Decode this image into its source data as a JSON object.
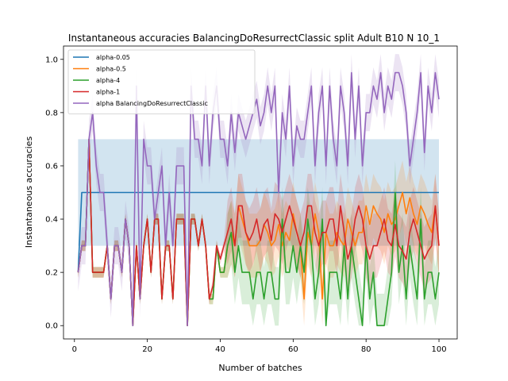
{
  "chart_data": {
    "type": "line",
    "title": "Instantaneous accuracies BalancingDoResurrectClassic split Adult B10 N 10_1",
    "xlabel": "Number of batches",
    "ylabel": "Instantaneous accuracies",
    "xlim": [
      -3,
      105
    ],
    "ylim": [
      -0.05,
      1.05
    ],
    "xticks": [
      0,
      20,
      40,
      60,
      80,
      100
    ],
    "yticks": [
      0.0,
      0.2,
      0.4,
      0.6,
      0.8,
      1.0
    ],
    "xtick_labels": [
      "0",
      "20",
      "40",
      "60",
      "80",
      "100"
    ],
    "ytick_labels": [
      "0.0",
      "0.2",
      "0.4",
      "0.6",
      "0.8",
      "1.0"
    ],
    "legend_position": "top-left",
    "grid": false,
    "x": [
      1,
      2,
      3,
      4,
      5,
      6,
      7,
      8,
      9,
      10,
      11,
      12,
      13,
      14,
      15,
      16,
      17,
      18,
      19,
      20,
      21,
      22,
      23,
      24,
      25,
      26,
      27,
      28,
      29,
      30,
      31,
      32,
      33,
      34,
      35,
      36,
      37,
      38,
      39,
      40,
      41,
      42,
      43,
      44,
      45,
      46,
      47,
      48,
      49,
      50,
      51,
      52,
      53,
      54,
      55,
      56,
      57,
      58,
      59,
      60,
      61,
      62,
      63,
      64,
      65,
      66,
      67,
      68,
      69,
      70,
      71,
      72,
      73,
      74,
      75,
      76,
      77,
      78,
      79,
      80,
      81,
      82,
      83,
      84,
      85,
      86,
      87,
      88,
      89,
      90,
      91,
      92,
      93,
      94,
      95,
      96,
      97,
      98,
      99,
      100
    ],
    "series": [
      {
        "name": "alpha-0.05",
        "color": "#1f77b4",
        "values": [
          0.2,
          0.5,
          0.5,
          0.5,
          0.5,
          0.5,
          0.5,
          0.5,
          0.5,
          0.5,
          0.5,
          0.5,
          0.5,
          0.5,
          0.5,
          0.5,
          0.5,
          0.5,
          0.5,
          0.5,
          0.5,
          0.5,
          0.5,
          0.5,
          0.5,
          0.5,
          0.5,
          0.5,
          0.5,
          0.5,
          0.5,
          0.5,
          0.5,
          0.5,
          0.5,
          0.5,
          0.5,
          0.5,
          0.5,
          0.5,
          0.5,
          0.5,
          0.5,
          0.5,
          0.5,
          0.5,
          0.5,
          0.5,
          0.5,
          0.5,
          0.5,
          0.5,
          0.5,
          0.5,
          0.5,
          0.5,
          0.5,
          0.5,
          0.5,
          0.5,
          0.5,
          0.5,
          0.5,
          0.5,
          0.5,
          0.5,
          0.5,
          0.5,
          0.5,
          0.5,
          0.5,
          0.5,
          0.5,
          0.5,
          0.5,
          0.5,
          0.5,
          0.5,
          0.5,
          0.5,
          0.5,
          0.5,
          0.5,
          0.5,
          0.5,
          0.5,
          0.5,
          0.5,
          0.5,
          0.5,
          0.5,
          0.5,
          0.5,
          0.5,
          0.5,
          0.5,
          0.5,
          0.5,
          0.5,
          0.5
        ],
        "band": [
          0.3,
          0.7
        ]
      },
      {
        "name": "alpha-0.5",
        "color": "#ff7f0e",
        "values": [
          0.2,
          0.3,
          0.3,
          0.7,
          0.2,
          0.2,
          0.2,
          0.2,
          0.3,
          0.1,
          0.3,
          0.3,
          0.2,
          0.4,
          0.3,
          0.0,
          0.3,
          0.1,
          0.3,
          0.4,
          0.2,
          0.4,
          0.4,
          0.1,
          0.3,
          0.3,
          0.1,
          0.4,
          0.4,
          0.4,
          0.0,
          0.4,
          0.4,
          0.3,
          0.4,
          0.3,
          0.1,
          0.1,
          0.3,
          0.2,
          0.2,
          0.3,
          0.35,
          0.3,
          0.45,
          0.4,
          0.35,
          0.3,
          0.3,
          0.3,
          0.32,
          0.38,
          0.35,
          0.3,
          0.32,
          0.38,
          0.3,
          0.35,
          0.32,
          0.42,
          0.35,
          0.3,
          0.1,
          0.35,
          0.3,
          0.42,
          0.35,
          0.1,
          0.35,
          0.3,
          0.3,
          0.35,
          0.32,
          0.3,
          0.4,
          0.35,
          0.3,
          0.35,
          0.35,
          0.45,
          0.38,
          0.45,
          0.42,
          0.4,
          0.35,
          0.42,
          0.38,
          0.4,
          0.45,
          0.5,
          0.42,
          0.48,
          0.42,
          0.38,
          0.45,
          0.42,
          0.38,
          0.35,
          0.45,
          0.3
        ]
      },
      {
        "name": "alpha-4",
        "color": "#2ca02c",
        "values": [
          0.2,
          0.3,
          0.3,
          0.7,
          0.2,
          0.2,
          0.2,
          0.2,
          0.3,
          0.1,
          0.3,
          0.3,
          0.2,
          0.4,
          0.3,
          0.0,
          0.3,
          0.1,
          0.3,
          0.4,
          0.2,
          0.4,
          0.4,
          0.1,
          0.3,
          0.3,
          0.1,
          0.4,
          0.4,
          0.4,
          0.0,
          0.4,
          0.4,
          0.3,
          0.4,
          0.3,
          0.1,
          0.1,
          0.3,
          0.2,
          0.2,
          0.3,
          0.35,
          0.2,
          0.3,
          0.2,
          0.2,
          0.2,
          0.1,
          0.2,
          0.2,
          0.1,
          0.2,
          0.2,
          0.1,
          0.1,
          0.4,
          0.2,
          0.2,
          0.3,
          0.2,
          0.3,
          0.2,
          0.4,
          0.3,
          0.1,
          0.2,
          0.4,
          0.0,
          0.2,
          0.2,
          0.2,
          0.1,
          0.3,
          0.1,
          0.3,
          0.2,
          0.1,
          0.0,
          0.3,
          0.1,
          0.2,
          0.0,
          0.0,
          0.0,
          0.1,
          0.2,
          0.5,
          0.2,
          0.3,
          0.1,
          0.3,
          0.2,
          0.1,
          0.4,
          0.1,
          0.2,
          0.2,
          0.1,
          0.2
        ]
      },
      {
        "name": "alpha-1",
        "color": "#d62728",
        "values": [
          0.2,
          0.3,
          0.3,
          0.7,
          0.2,
          0.2,
          0.2,
          0.2,
          0.3,
          0.1,
          0.3,
          0.3,
          0.2,
          0.4,
          0.3,
          0.0,
          0.3,
          0.1,
          0.3,
          0.4,
          0.2,
          0.4,
          0.4,
          0.1,
          0.3,
          0.3,
          0.1,
          0.4,
          0.4,
          0.4,
          0.0,
          0.4,
          0.4,
          0.3,
          0.4,
          0.3,
          0.1,
          0.15,
          0.3,
          0.25,
          0.3,
          0.35,
          0.4,
          0.3,
          0.45,
          0.45,
          0.35,
          0.32,
          0.35,
          0.4,
          0.32,
          0.38,
          0.4,
          0.32,
          0.42,
          0.4,
          0.35,
          0.4,
          0.45,
          0.4,
          0.35,
          0.3,
          0.35,
          0.45,
          0.45,
          0.35,
          0.3,
          0.35,
          0.35,
          0.4,
          0.4,
          0.3,
          0.45,
          0.35,
          0.25,
          0.3,
          0.4,
          0.45,
          0.4,
          0.3,
          0.25,
          0.3,
          0.3,
          0.35,
          0.4,
          0.32,
          0.3,
          0.38,
          0.3,
          0.28,
          0.25,
          0.35,
          0.4,
          0.35,
          0.3,
          0.25,
          0.28,
          0.3,
          0.45,
          0.3
        ]
      },
      {
        "name": "alpha BalancingDoResurrectClassic",
        "color": "#9467bd",
        "values": [
          0.2,
          0.3,
          0.3,
          0.7,
          0.8,
          0.6,
          0.5,
          0.5,
          0.3,
          0.1,
          0.3,
          0.3,
          0.2,
          0.4,
          0.3,
          0.0,
          0.9,
          0.1,
          0.7,
          0.6,
          0.6,
          0.4,
          0.5,
          0.6,
          0.3,
          0.5,
          0.3,
          0.6,
          0.6,
          0.6,
          0.0,
          0.9,
          0.7,
          0.7,
          0.6,
          0.9,
          0.6,
          0.8,
          0.9,
          0.7,
          0.7,
          0.6,
          0.8,
          0.65,
          0.8,
          0.75,
          0.7,
          0.75,
          0.8,
          0.85,
          0.75,
          0.8,
          0.9,
          0.8,
          0.9,
          0.5,
          0.8,
          0.7,
          0.9,
          0.6,
          0.75,
          0.7,
          0.7,
          0.8,
          0.9,
          0.6,
          0.8,
          0.9,
          0.6,
          0.9,
          0.7,
          0.6,
          0.9,
          0.8,
          0.6,
          0.95,
          0.7,
          0.9,
          0.6,
          0.8,
          0.8,
          0.9,
          0.85,
          0.95,
          0.8,
          0.9,
          0.85,
          0.95,
          0.95,
          0.9,
          0.8,
          0.6,
          0.7,
          0.8,
          0.95,
          0.65,
          0.9,
          0.8,
          0.95,
          0.85
        ]
      }
    ]
  }
}
